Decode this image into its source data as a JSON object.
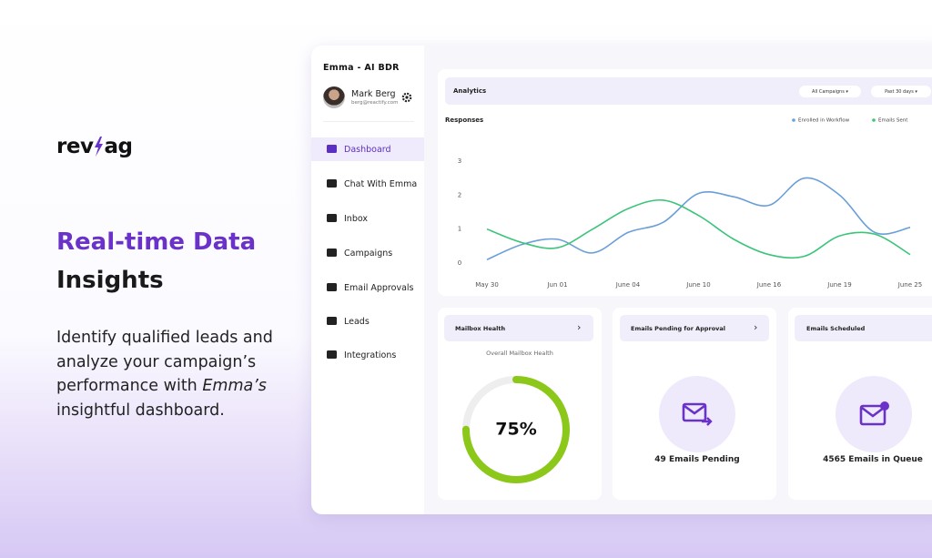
{
  "brand": {
    "left": "rev",
    "right": "ag"
  },
  "hero": {
    "title_accent": "Real-time Data",
    "title": "Insights",
    "body": [
      "Identify qualified leads and analyze your campaign’s performance with ",
      "Emma’s",
      " insightful dashboard."
    ]
  },
  "sidebar": {
    "app_title": "Emma - AI BDR",
    "user_name": "Mark Berg",
    "user_email": "berg@reactify.com",
    "nav": [
      "Dashboard",
      "Chat With Emma",
      "Inbox",
      "Campaigns",
      "Email Approvals",
      "Leads",
      "Integrations"
    ]
  },
  "analytics": {
    "title": "Analytics",
    "filters": [
      "All Campaigns",
      "Past 30 days"
    ]
  },
  "chart_data": {
    "type": "line",
    "title": "Responses",
    "categories": [
      "May 30",
      null,
      "Jun 01",
      null,
      "June 04",
      null,
      "June 10",
      null,
      "June 16",
      null,
      "June 19",
      null,
      "June 25"
    ],
    "series": [
      {
        "name": "Enrolled in Workflow",
        "color": "#6a9fd8",
        "values": [
          0.1,
          0.55,
          0.7,
          0.3,
          0.9,
          1.2,
          2.05,
          1.95,
          1.7,
          2.5,
          2.0,
          0.9,
          1.05
        ]
      },
      {
        "name": "Emails Sent",
        "color": "#3cc47a",
        "values": [
          1.0,
          0.6,
          0.45,
          1.0,
          1.6,
          1.85,
          1.4,
          0.7,
          0.25,
          0.2,
          0.8,
          0.85,
          0.25
        ]
      }
    ],
    "ylim": [
      0,
      3
    ],
    "yticks": [
      0,
      1,
      2,
      3
    ],
    "legend": "top-right"
  },
  "cards": [
    {
      "title": "Mailbox Health",
      "subtitle": "Overall Mailbox Health",
      "value": 75,
      "value_label": "75%"
    },
    {
      "title": "Emails Pending for Approval",
      "text": "49 Emails Pending"
    },
    {
      "title": "Emails Scheduled",
      "text": "4565 Emails in Queue"
    }
  ]
}
